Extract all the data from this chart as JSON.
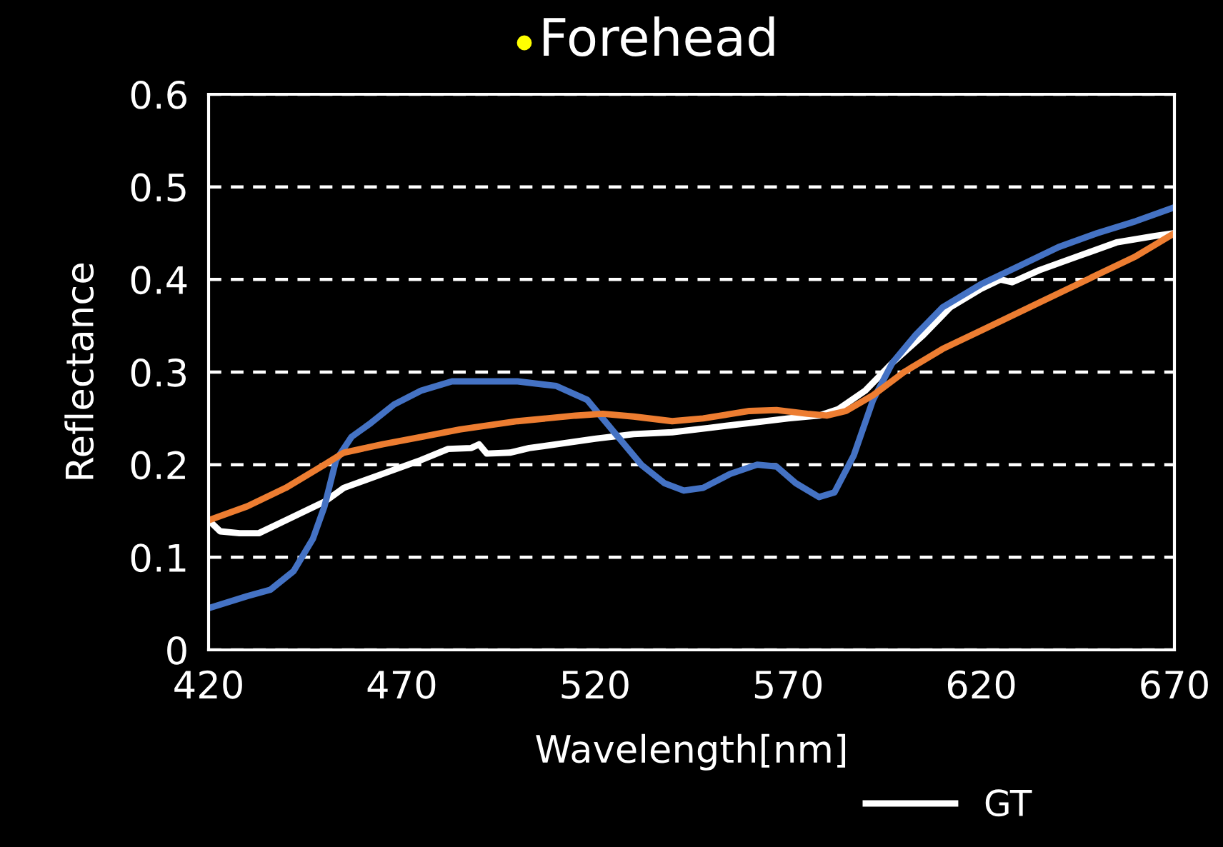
{
  "chart_data": {
    "type": "line",
    "title": "Forehead",
    "xlabel": "Wavelength[nm]",
    "ylabel": "Reflectance",
    "xlim": [
      420,
      670
    ],
    "xticks": [
      420,
      470,
      520,
      570,
      620,
      670
    ],
    "ylim": [
      0,
      0.6
    ],
    "yticks": [
      0,
      0.1,
      0.2,
      0.3,
      0.4,
      0.5,
      0.6
    ],
    "grid": "y",
    "line_style": "solid",
    "marker": "none",
    "legend": "bottom",
    "series": [
      {
        "name": "GT",
        "color": "#ffffff",
        "x": [
          420,
          423,
          428,
          433,
          440,
          450,
          455,
          465,
          475,
          482,
          488,
          490,
          492,
          498,
          503,
          510,
          520,
          530,
          540,
          550,
          560,
          570,
          578,
          583,
          590,
          597,
          605,
          612,
          620,
          625,
          628,
          635,
          645,
          655,
          665,
          670
        ],
        "values": [
          0.14,
          0.128,
          0.126,
          0.126,
          0.14,
          0.16,
          0.175,
          0.19,
          0.205,
          0.217,
          0.218,
          0.222,
          0.212,
          0.213,
          0.218,
          0.222,
          0.228,
          0.233,
          0.235,
          0.24,
          0.245,
          0.25,
          0.253,
          0.26,
          0.28,
          0.31,
          0.34,
          0.37,
          0.39,
          0.4,
          0.397,
          0.41,
          0.425,
          0.44,
          0.447,
          0.45
        ]
      },
      {
        "color": "#4472c4",
        "x": [
          420,
          430,
          436,
          442,
          447,
          450,
          453,
          457,
          462,
          468,
          475,
          483,
          490,
          500,
          510,
          518,
          525,
          532,
          538,
          543,
          548,
          555,
          562,
          567,
          572,
          578,
          582,
          587,
          592,
          597,
          603,
          610,
          620,
          630,
          640,
          650,
          660,
          670
        ],
        "values": [
          0.045,
          0.058,
          0.065,
          0.085,
          0.12,
          0.155,
          0.205,
          0.23,
          0.245,
          0.265,
          0.28,
          0.29,
          0.29,
          0.29,
          0.285,
          0.27,
          0.235,
          0.2,
          0.18,
          0.172,
          0.175,
          0.19,
          0.2,
          0.198,
          0.18,
          0.165,
          0.17,
          0.21,
          0.27,
          0.31,
          0.34,
          0.37,
          0.395,
          0.415,
          0.435,
          0.45,
          0.463,
          0.478
        ]
      },
      {
        "color": "#ed7d31",
        "x": [
          420,
          430,
          440,
          450,
          455,
          465,
          475,
          485,
          500,
          515,
          522,
          530,
          540,
          548,
          560,
          567,
          575,
          580,
          585,
          592,
          600,
          610,
          620,
          635,
          650,
          660,
          670
        ],
        "values": [
          0.14,
          0.155,
          0.175,
          0.2,
          0.213,
          0.222,
          0.23,
          0.238,
          0.247,
          0.253,
          0.255,
          0.252,
          0.247,
          0.25,
          0.258,
          0.259,
          0.255,
          0.253,
          0.258,
          0.275,
          0.3,
          0.325,
          0.345,
          0.375,
          0.405,
          0.425,
          0.45
        ]
      }
    ]
  }
}
